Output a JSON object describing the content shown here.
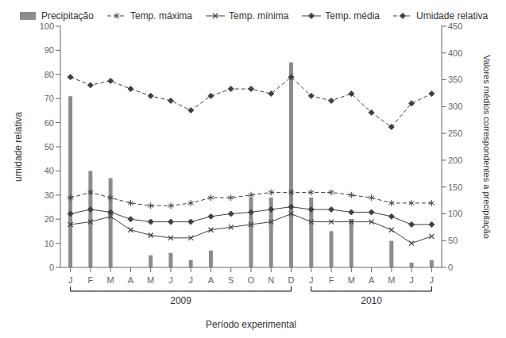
{
  "chart_data": {
    "type": "bar",
    "categories": [
      "J",
      "F",
      "M",
      "A",
      "M",
      "J",
      "J",
      "A",
      "S",
      "O",
      "N",
      "D",
      "J",
      "F",
      "M",
      "A",
      "M",
      "J",
      "J"
    ],
    "series": [
      {
        "name": "Precipitação",
        "type": "bar",
        "color": "#8c8c8c",
        "values": [
          71,
          40,
          37,
          0,
          5,
          6,
          3,
          7,
          0,
          29,
          29,
          85,
          29,
          15,
          20,
          0,
          11,
          2,
          3
        ]
      },
      {
        "name": "Temp. máxima",
        "type": "line",
        "axis": "y2",
        "color": "#404040",
        "line_style": "dashed",
        "marker": "asterisk",
        "values": [
          130,
          140,
          130,
          120,
          115,
          115,
          120,
          130,
          130,
          135,
          140,
          140,
          140,
          140,
          135,
          130,
          120,
          120,
          120
        ]
      },
      {
        "name": "Temp. mínima",
        "type": "line",
        "axis": "y2",
        "color": "#404040",
        "line_style": "solid",
        "marker": "x",
        "values": [
          80,
          85,
          95,
          70,
          60,
          55,
          55,
          70,
          75,
          80,
          85,
          100,
          85,
          85,
          85,
          85,
          70,
          45,
          58
        ]
      },
      {
        "name": "Temp. média",
        "type": "line",
        "axis": "y2",
        "color": "#404040",
        "line_style": "solid",
        "marker": "diamond",
        "values": [
          100,
          108,
          103,
          90,
          85,
          85,
          85,
          95,
          100,
          103,
          108,
          113,
          108,
          108,
          103,
          103,
          95,
          80,
          80
        ]
      },
      {
        "name": "Umidade relativa",
        "type": "line",
        "axis": "y2",
        "color": "#404040",
        "line_style": "dashed",
        "marker": "diamond",
        "values": [
          355,
          340,
          348,
          333,
          320,
          311,
          293,
          320,
          333,
          333,
          324,
          355,
          320,
          311,
          324,
          289,
          262,
          306,
          324
        ]
      }
    ],
    "xlabel": "Período experimental",
    "ylabel": "umidade relativa",
    "y2label": "Valores médios correspondentes a precipitação",
    "ylim": [
      0,
      100
    ],
    "yticks": [
      0,
      10,
      20,
      30,
      40,
      50,
      60,
      70,
      80,
      90,
      100
    ],
    "y2lim": [
      0,
      450
    ],
    "y2ticks": [
      0,
      50,
      100,
      150,
      200,
      250,
      300,
      350,
      400,
      450
    ],
    "annotations": [
      {
        "text": "2009",
        "x": [
          0,
          11
        ]
      },
      {
        "text": "2010",
        "x": [
          12,
          18
        ]
      }
    ],
    "grid": false,
    "legend": "top"
  }
}
